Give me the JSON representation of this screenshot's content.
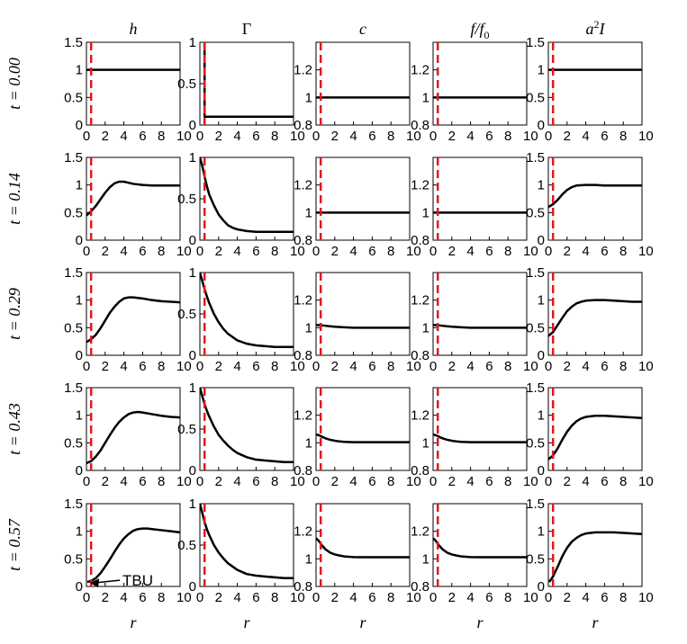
{
  "chart_data": {
    "type": "line",
    "layout": "small-multiples-grid",
    "rows": 5,
    "cols": 5,
    "column_titles": [
      "h",
      "Γ",
      "c",
      "f/f",
      "a I"
    ],
    "column_title_subscripts": [
      "",
      "",
      "",
      "0",
      ""
    ],
    "column_title_superscripts": [
      "",
      "",
      "",
      "",
      "2"
    ],
    "row_labels": [
      "t = 0.00",
      "t = 0.14",
      "t = 0.29",
      "t = 0.43",
      "t = 0.57"
    ],
    "xlabel": "r",
    "xlim": [
      0,
      10
    ],
    "x_ticks": [
      0,
      2,
      4,
      6,
      8,
      10
    ],
    "x_tick_labels": [
      "0",
      "2",
      "4",
      "6",
      "8",
      "10"
    ],
    "vline_x": 0.5,
    "vline_color": "#e0191e",
    "line_color": "#000000",
    "columns": [
      {
        "ylim": [
          0,
          1.5
        ],
        "y_ticks": [
          0,
          0.5,
          1,
          1.5
        ],
        "y_tick_labels": [
          "0",
          "0.5",
          "1",
          "1.5"
        ]
      },
      {
        "ylim": [
          0,
          1
        ],
        "y_ticks": [
          0,
          0.5,
          1
        ],
        "y_tick_labels": [
          "0",
          "0.5",
          "1"
        ]
      },
      {
        "ylim": [
          0.8,
          1.4
        ],
        "y_ticks": [
          0.8,
          1,
          1.2
        ],
        "y_tick_labels": [
          "0.8",
          "1",
          "1.2"
        ]
      },
      {
        "ylim": [
          0.8,
          1.4
        ],
        "y_ticks": [
          0.8,
          1,
          1.2
        ],
        "y_tick_labels": [
          "0.8",
          "1",
          "1.2"
        ]
      },
      {
        "ylim": [
          0,
          1.5
        ],
        "y_ticks": [
          0,
          0.5,
          1,
          1.5
        ],
        "y_tick_labels": [
          "0",
          "0.5",
          "1",
          "1.5"
        ]
      }
    ],
    "series": [
      [
        {
          "x": [
            0,
            10
          ],
          "y": [
            1,
            1
          ]
        },
        {
          "x": [
            0.5,
            0.5,
            10
          ],
          "y": [
            1,
            0.1,
            0.1
          ]
        },
        {
          "x": [
            0,
            10
          ],
          "y": [
            1,
            1
          ]
        },
        {
          "x": [
            0,
            10
          ],
          "y": [
            1,
            1
          ]
        },
        {
          "x": [
            0,
            10
          ],
          "y": [
            1,
            1
          ]
        }
      ],
      [
        {
          "x": [
            0,
            0.5,
            1,
            1.5,
            2,
            2.5,
            3,
            3.5,
            4,
            4.5,
            5,
            6,
            7,
            8,
            9,
            10
          ],
          "y": [
            0.45,
            0.52,
            0.62,
            0.74,
            0.86,
            0.96,
            1.03,
            1.06,
            1.06,
            1.04,
            1.02,
            1.0,
            0.99,
            0.99,
            0.99,
            0.99
          ]
        },
        {
          "x": [
            0,
            0.25,
            0.5,
            0.75,
            1,
            1.5,
            2,
            2.5,
            3,
            3.5,
            4,
            5,
            6,
            7,
            8,
            9,
            10
          ],
          "y": [
            1,
            0.9,
            0.77,
            0.65,
            0.55,
            0.42,
            0.31,
            0.24,
            0.18,
            0.15,
            0.13,
            0.11,
            0.1,
            0.1,
            0.1,
            0.1,
            0.1
          ]
        },
        {
          "x": [
            0,
            1,
            2,
            4,
            6,
            8,
            10
          ],
          "y": [
            1.0,
            1.0,
            1.0,
            1.0,
            1.0,
            1.0,
            1.0
          ]
        },
        {
          "x": [
            0,
            1,
            2,
            4,
            6,
            8,
            10
          ],
          "y": [
            1.0,
            1.0,
            1.0,
            1.0,
            1.0,
            1.0,
            1.0
          ]
        },
        {
          "x": [
            0,
            0.5,
            1,
            1.5,
            2,
            2.5,
            3,
            4,
            5,
            6,
            7,
            8,
            9,
            10
          ],
          "y": [
            0.6,
            0.65,
            0.73,
            0.83,
            0.91,
            0.96,
            0.99,
            1.0,
            1.0,
            0.99,
            0.99,
            0.99,
            0.99,
            0.99
          ]
        }
      ],
      [
        {
          "x": [
            0,
            0.5,
            1,
            1.5,
            2,
            2.5,
            3,
            3.5,
            4,
            4.5,
            5,
            5.5,
            6,
            7,
            8,
            9,
            10
          ],
          "y": [
            0.24,
            0.29,
            0.37,
            0.49,
            0.63,
            0.77,
            0.88,
            0.97,
            1.03,
            1.05,
            1.05,
            1.04,
            1.03,
            1.0,
            0.98,
            0.97,
            0.96
          ]
        },
        {
          "x": [
            0,
            0.25,
            0.5,
            0.75,
            1,
            1.5,
            2,
            2.5,
            3,
            3.5,
            4,
            5,
            6,
            7,
            8,
            9,
            10
          ],
          "y": [
            1,
            0.9,
            0.8,
            0.71,
            0.63,
            0.5,
            0.4,
            0.32,
            0.26,
            0.22,
            0.18,
            0.14,
            0.12,
            0.11,
            0.1,
            0.1,
            0.1
          ]
        },
        {
          "x": [
            0,
            0.5,
            1,
            1.5,
            2,
            3,
            4,
            6,
            8,
            10
          ],
          "y": [
            1.02,
            1.018,
            1.014,
            1.01,
            1.007,
            1.003,
            1.0,
            1.0,
            1.0,
            1.0
          ]
        },
        {
          "x": [
            0,
            0.5,
            1,
            1.5,
            2,
            3,
            4,
            6,
            8,
            10
          ],
          "y": [
            1.02,
            1.018,
            1.014,
            1.01,
            1.007,
            1.003,
            1.0,
            1.0,
            1.0,
            1.0
          ]
        },
        {
          "x": [
            0,
            0.5,
            1,
            1.5,
            2,
            2.5,
            3,
            3.5,
            4,
            5,
            6,
            7,
            8,
            9,
            10
          ],
          "y": [
            0.35,
            0.42,
            0.55,
            0.68,
            0.8,
            0.88,
            0.94,
            0.97,
            0.99,
            1.0,
            1.0,
            0.99,
            0.98,
            0.97,
            0.97
          ]
        }
      ],
      [
        {
          "x": [
            0,
            0.5,
            1,
            1.5,
            2,
            2.5,
            3,
            3.5,
            4,
            4.5,
            5,
            5.5,
            6,
            7,
            8,
            9,
            10
          ],
          "y": [
            0.13,
            0.17,
            0.25,
            0.36,
            0.5,
            0.64,
            0.77,
            0.88,
            0.96,
            1.02,
            1.05,
            1.06,
            1.05,
            1.02,
            0.99,
            0.97,
            0.96
          ]
        },
        {
          "x": [
            0,
            0.25,
            0.5,
            0.75,
            1,
            1.5,
            2,
            2.5,
            3,
            3.5,
            4,
            5,
            6,
            7,
            8,
            9,
            10
          ],
          "y": [
            1,
            0.9,
            0.8,
            0.72,
            0.65,
            0.53,
            0.43,
            0.36,
            0.3,
            0.25,
            0.21,
            0.16,
            0.13,
            0.12,
            0.11,
            0.1,
            0.1
          ]
        },
        {
          "x": [
            0,
            0.3,
            0.6,
            1,
            1.5,
            2,
            2.5,
            3,
            4,
            5,
            6,
            8,
            10
          ],
          "y": [
            1.06,
            1.055,
            1.045,
            1.033,
            1.022,
            1.015,
            1.01,
            1.007,
            1.005,
            1.005,
            1.005,
            1.005,
            1.005
          ]
        },
        {
          "x": [
            0,
            0.3,
            0.6,
            1,
            1.5,
            2,
            2.5,
            3,
            4,
            5,
            6,
            8,
            10
          ],
          "y": [
            1.06,
            1.055,
            1.045,
            1.033,
            1.022,
            1.015,
            1.01,
            1.007,
            1.005,
            1.005,
            1.005,
            1.005,
            1.005
          ]
        },
        {
          "x": [
            0,
            0.5,
            1,
            1.5,
            2,
            2.5,
            3,
            3.5,
            4,
            5,
            6,
            7,
            8,
            9,
            10
          ],
          "y": [
            0.2,
            0.27,
            0.4,
            0.56,
            0.7,
            0.81,
            0.89,
            0.94,
            0.97,
            0.99,
            0.99,
            0.98,
            0.97,
            0.96,
            0.95
          ]
        }
      ],
      [
        {
          "x": [
            0.1,
            0.5,
            1,
            1.5,
            2,
            2.5,
            3,
            3.5,
            4,
            4.5,
            5,
            5.5,
            6,
            6.5,
            7,
            8,
            9,
            10
          ],
          "y": [
            0.08,
            0.1,
            0.15,
            0.24,
            0.36,
            0.49,
            0.63,
            0.76,
            0.87,
            0.95,
            1.01,
            1.04,
            1.05,
            1.05,
            1.04,
            1.02,
            1.0,
            0.98
          ]
        },
        {
          "x": [
            0,
            0.25,
            0.5,
            0.75,
            1,
            1.5,
            2,
            2.5,
            3,
            3.5,
            4,
            5,
            6,
            7,
            8,
            9,
            10
          ],
          "y": [
            1,
            0.89,
            0.78,
            0.69,
            0.62,
            0.5,
            0.41,
            0.34,
            0.28,
            0.24,
            0.2,
            0.15,
            0.13,
            0.12,
            0.11,
            0.1,
            0.1
          ]
        },
        {
          "x": [
            0,
            0.3,
            0.6,
            1,
            1.5,
            2,
            2.5,
            3,
            4,
            5,
            6,
            8,
            10
          ],
          "y": [
            1.15,
            1.13,
            1.1,
            1.07,
            1.045,
            1.032,
            1.024,
            1.018,
            1.013,
            1.012,
            1.012,
            1.012,
            1.012
          ]
        },
        {
          "x": [
            0,
            0.3,
            0.6,
            1,
            1.5,
            2,
            2.5,
            3,
            4,
            5,
            6,
            8,
            10
          ],
          "y": [
            1.15,
            1.13,
            1.1,
            1.07,
            1.045,
            1.032,
            1.024,
            1.018,
            1.013,
            1.012,
            1.012,
            1.012,
            1.012
          ]
        },
        {
          "x": [
            0.1,
            0.5,
            1,
            1.5,
            2,
            2.5,
            3,
            3.5,
            4,
            5,
            6,
            7,
            8,
            9,
            10
          ],
          "y": [
            0.08,
            0.18,
            0.36,
            0.55,
            0.7,
            0.81,
            0.88,
            0.93,
            0.96,
            0.98,
            0.98,
            0.98,
            0.97,
            0.96,
            0.95
          ]
        }
      ]
    ],
    "annotation": {
      "text": "TBU",
      "row": 4,
      "col": 0,
      "target_x": 0.1,
      "target_y": 0.08
    }
  }
}
